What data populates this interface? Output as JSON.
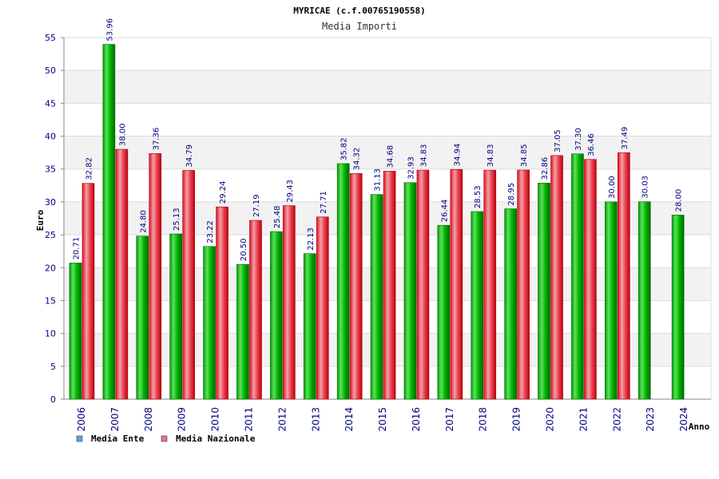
{
  "chart_data": {
    "type": "bar",
    "title": "MYRICAE (c.f.00765190558)",
    "subtitle": "Media Importi",
    "xlabel": "Anno",
    "ylabel": "Euro",
    "ylim": [
      0,
      55
    ],
    "yticks": [
      0,
      5,
      10,
      15,
      20,
      25,
      30,
      35,
      40,
      45,
      50,
      55
    ],
    "grid": true,
    "legend_position": "bottom-left",
    "categories": [
      "2006",
      "2007",
      "2008",
      "2009",
      "2010",
      "2011",
      "2012",
      "2013",
      "2014",
      "2015",
      "2016",
      "2017",
      "2018",
      "2019",
      "2020",
      "2021",
      "2022",
      "2023",
      "2024"
    ],
    "series": [
      {
        "name": "Media Ente",
        "color": "#00b000",
        "legend_color": "#5aa0e6",
        "values": [
          20.71,
          53.96,
          24.8,
          25.13,
          23.22,
          20.5,
          25.48,
          22.13,
          35.82,
          31.13,
          32.93,
          26.44,
          28.53,
          28.95,
          32.86,
          37.3,
          30.0,
          30.03,
          28.0
        ],
        "labels": [
          "20.71",
          "53.96",
          "24.80",
          "25.13",
          "23.22",
          "20.50",
          "25.48",
          "22.13",
          "35.82",
          "31.13",
          "32.93",
          "26.44",
          "28.53",
          "28.95",
          "32.86",
          "37.30",
          "30.00",
          "30.03",
          "28.00"
        ]
      },
      {
        "name": "Media Nazionale",
        "color": "#e8202a",
        "legend_color": "#e070a0",
        "values": [
          32.82,
          38.0,
          37.36,
          34.79,
          29.24,
          27.19,
          29.43,
          27.71,
          34.32,
          34.68,
          34.83,
          34.94,
          34.83,
          34.85,
          37.05,
          36.46,
          37.49,
          null,
          null
        ],
        "labels": [
          "32.82",
          "38.00",
          "37.36",
          "34.79",
          "29.24",
          "27.19",
          "29.43",
          "27.71",
          "34.32",
          "34.68",
          "34.83",
          "34.94",
          "34.83",
          "34.85",
          "37.05",
          "36.46",
          "37.49",
          "",
          ""
        ]
      }
    ]
  }
}
